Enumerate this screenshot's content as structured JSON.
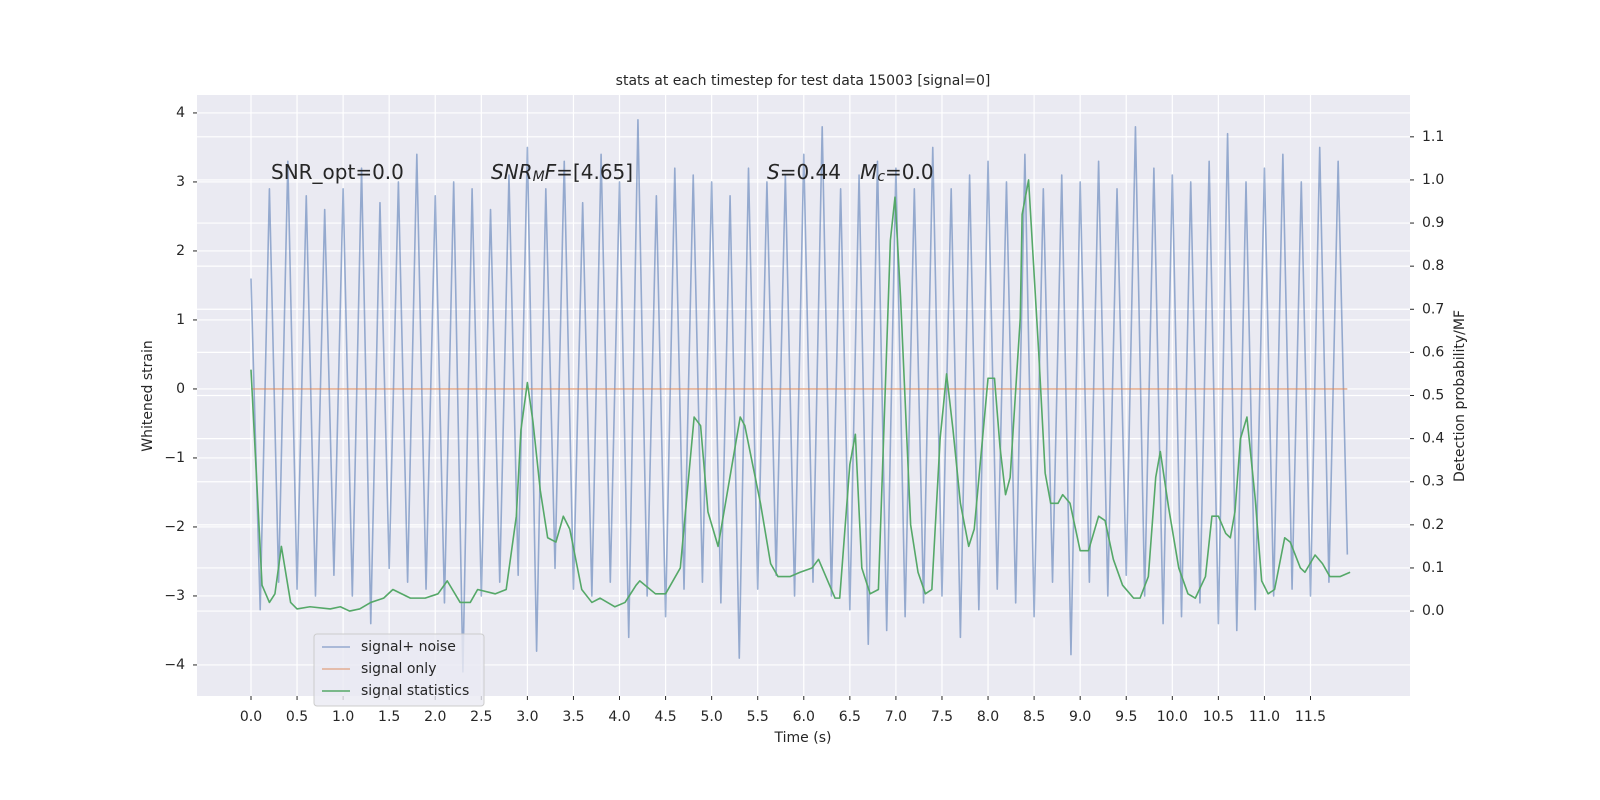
{
  "chart_data": {
    "type": "line",
    "title": "stats at each timestep for test data 15003 [signal=0]",
    "xlabel": "Time (s)",
    "ylabel": "Whitened strain",
    "y2label": "Detection probability/MF",
    "background": "#eaeaf2",
    "grid": true,
    "legend": "lower left",
    "xlim": [
      -0.586,
      12.58
    ],
    "ylim": [
      -4.45,
      4.26
    ],
    "y2lim": [
      -0.197,
      1.197
    ],
    "xticks": [
      {
        "value": 0,
        "label": "0.0"
      },
      0.5,
      {
        "value": 1,
        "label": "1.0"
      },
      1.5,
      {
        "value": 2,
        "label": "2.0"
      },
      2.5,
      {
        "value": 3,
        "label": "3.0"
      },
      3.5,
      {
        "value": 4,
        "label": "4.0"
      },
      4.5,
      {
        "value": 5,
        "label": "5.0"
      },
      5.5,
      {
        "value": 6,
        "label": "6.0"
      },
      6.5,
      {
        "value": 7,
        "label": "7.0"
      },
      7.5,
      {
        "value": 8,
        "label": "8.0"
      },
      8.5,
      {
        "value": 9,
        "label": "9.0"
      },
      9.5,
      {
        "value": 10,
        "label": "10.0"
      },
      10.5,
      {
        "value": 11,
        "label": "11.0"
      },
      11.5
    ],
    "yticks": [
      {
        "value": -4,
        "label": "−4"
      },
      {
        "value": -3,
        "label": "−3"
      },
      {
        "value": -2,
        "label": "−2"
      },
      {
        "value": -1,
        "label": "−1"
      },
      0,
      1,
      2,
      3,
      4
    ],
    "y2ticks": [
      {
        "value": 0,
        "label": "0.0"
      },
      0.1,
      0.2,
      0.3,
      0.4,
      0.5,
      0.6,
      0.7,
      0.8,
      0.9,
      {
        "value": 1,
        "label": "1.0"
      },
      1.1
    ],
    "annotations": [
      [
        {
          "text": "SNR_opt=0.0"
        }
      ],
      [
        {
          "text": "SNR",
          "italic": true
        },
        {
          "text": "M",
          "italic": true,
          "sub": true
        },
        {
          "text": "F",
          "italic": true
        },
        {
          "text": "=[4.65]"
        }
      ],
      [
        {
          "text": "S",
          "italic": true
        },
        {
          "text": "=0.44   "
        },
        {
          "text": "M",
          "italic": true
        },
        {
          "text": "c",
          "italic": true,
          "sub": true
        },
        {
          "text": "=0.0"
        }
      ]
    ],
    "series": [
      {
        "name": "signal+ noise",
        "color": "#4c72b0",
        "opacity": 0.55,
        "x": [
          0.0,
          0.1,
          0.2,
          0.3,
          0.4,
          0.5,
          0.6,
          0.7,
          0.8,
          0.9,
          1.0,
          1.1,
          1.2,
          1.3,
          1.4,
          1.5,
          1.6,
          1.7,
          1.8,
          1.9,
          2.0,
          2.1,
          2.2,
          2.3,
          2.4,
          2.5,
          2.6,
          2.7,
          2.8,
          2.9,
          3.0,
          3.1,
          3.2,
          3.3,
          3.4,
          3.5,
          3.6,
          3.7,
          3.8,
          3.9,
          4.0,
          4.1,
          4.2,
          4.3,
          4.4,
          4.5,
          4.6,
          4.7,
          4.8,
          4.9,
          5.0,
          5.1,
          5.2,
          5.3,
          5.4,
          5.5,
          5.6,
          5.7,
          5.8,
          5.9,
          6.0,
          6.1,
          6.2,
          6.3,
          6.4,
          6.5,
          6.6,
          6.7,
          6.8,
          6.9,
          7.0,
          7.1,
          7.2,
          7.3,
          7.4,
          7.5,
          7.6,
          7.7,
          7.8,
          7.9,
          8.0,
          8.1,
          8.2,
          8.3,
          8.4,
          8.5,
          8.6,
          8.7,
          8.8,
          8.9,
          9.0,
          9.1,
          9.2,
          9.3,
          9.4,
          9.5,
          9.6,
          9.7,
          9.8,
          9.9,
          10.0,
          10.1,
          10.2,
          10.3,
          10.4,
          10.5,
          10.6,
          10.7,
          10.8,
          10.9,
          11.0,
          11.1,
          11.2,
          11.3,
          11.4,
          11.5,
          11.6,
          11.7,
          11.8,
          11.9
        ],
        "values": [
          1.6,
          -3.2,
          2.9,
          -2.8,
          3.3,
          -2.9,
          2.8,
          -3.0,
          2.6,
          -2.7,
          2.9,
          -3.0,
          3.2,
          -3.4,
          2.7,
          -2.6,
          3.0,
          -2.8,
          3.4,
          -2.9,
          2.8,
          -3.1,
          3.0,
          -4.1,
          2.9,
          -3.0,
          2.6,
          -2.8,
          3.1,
          -2.7,
          3.5,
          -3.8,
          2.9,
          -2.6,
          3.3,
          -2.9,
          2.7,
          -3.0,
          3.4,
          -2.8,
          3.0,
          -3.6,
          3.9,
          -3.0,
          2.8,
          -3.3,
          3.2,
          -2.9,
          3.1,
          -2.8,
          3.0,
          -3.1,
          2.8,
          -3.9,
          3.2,
          -2.9,
          3.0,
          -2.7,
          3.1,
          -3.0,
          3.4,
          -2.8,
          3.8,
          -3.0,
          2.9,
          -3.2,
          3.1,
          -3.7,
          3.3,
          -3.5,
          3.2,
          -3.3,
          2.9,
          -3.1,
          3.5,
          -3.0,
          2.9,
          -3.6,
          3.1,
          -3.2,
          3.3,
          -2.9,
          3.0,
          -3.1,
          3.4,
          -3.3,
          2.9,
          -2.8,
          3.1,
          -3.85,
          3.0,
          -2.8,
          3.3,
          -3.0,
          2.9,
          -2.7,
          3.8,
          -3.0,
          3.2,
          -3.4,
          3.1,
          -3.3,
          3.0,
          -3.1,
          3.3,
          -3.4,
          3.7,
          -3.5,
          3.0,
          -3.2,
          3.2,
          -3.0,
          3.4,
          -2.9,
          3.0,
          -3.0,
          3.5,
          -2.8,
          3.3,
          -2.4
        ]
      },
      {
        "name": "signal only",
        "color": "#dd8452",
        "opacity": 0.6,
        "x": [
          0.0,
          11.9
        ],
        "values": [
          0,
          0
        ]
      },
      {
        "name": "signal statistics",
        "color": "#55a868",
        "opacity": 1,
        "axis": "y2",
        "x": [
          0,
          0.12,
          0.2,
          0.26,
          0.33,
          0.43,
          0.5,
          0.64,
          0.86,
          0.97,
          1.07,
          1.18,
          1.3,
          1.44,
          1.54,
          1.73,
          1.89,
          2.03,
          2.13,
          2.27,
          2.38,
          2.46,
          2.65,
          2.77,
          2.88,
          2.93,
          3.0,
          3.06,
          3.14,
          3.22,
          3.31,
          3.39,
          3.46,
          3.59,
          3.7,
          3.79,
          3.95,
          4.06,
          4.18,
          4.22,
          4.39,
          4.5,
          4.66,
          4.81,
          4.88,
          4.96,
          5.07,
          5.31,
          5.36,
          5.53,
          5.64,
          5.72,
          5.85,
          5.96,
          6.09,
          6.16,
          6.26,
          6.34,
          6.39,
          6.5,
          6.56,
          6.63,
          6.72,
          6.81,
          6.94,
          6.99,
          7.05,
          7.16,
          7.24,
          7.32,
          7.39,
          7.48,
          7.55,
          7.62,
          7.7,
          7.79,
          7.85,
          8.0,
          8.07,
          8.13,
          8.19,
          8.24,
          8.35,
          8.37,
          8.44,
          8.55,
          8.62,
          8.68,
          8.76,
          8.81,
          8.89,
          9.0,
          9.09,
          9.2,
          9.27,
          9.36,
          9.46,
          9.58,
          9.65,
          9.74,
          9.82,
          9.87,
          9.96,
          10.07,
          10.17,
          10.25,
          10.36,
          10.43,
          10.5,
          10.58,
          10.63,
          10.68,
          10.74,
          10.81,
          10.9,
          10.97,
          11.04,
          11.11,
          11.22,
          11.28,
          11.39,
          11.44,
          11.55,
          11.63,
          11.71,
          11.82,
          11.93
        ],
        "values": [
          0.56,
          0.06,
          0.02,
          0.04,
          0.15,
          0.02,
          0.005,
          0.01,
          0.005,
          0.01,
          0.0,
          0.005,
          0.02,
          0.03,
          0.05,
          0.03,
          0.03,
          0.04,
          0.07,
          0.02,
          0.02,
          0.05,
          0.04,
          0.05,
          0.22,
          0.42,
          0.53,
          0.44,
          0.28,
          0.17,
          0.16,
          0.22,
          0.19,
          0.05,
          0.02,
          0.03,
          0.01,
          0.02,
          0.06,
          0.07,
          0.04,
          0.04,
          0.1,
          0.45,
          0.43,
          0.23,
          0.15,
          0.45,
          0.43,
          0.25,
          0.11,
          0.08,
          0.08,
          0.09,
          0.1,
          0.12,
          0.07,
          0.03,
          0.03,
          0.34,
          0.41,
          0.1,
          0.04,
          0.05,
          0.86,
          0.96,
          0.73,
          0.2,
          0.09,
          0.04,
          0.05,
          0.4,
          0.55,
          0.42,
          0.25,
          0.15,
          0.19,
          0.54,
          0.54,
          0.38,
          0.27,
          0.31,
          0.68,
          0.92,
          1.0,
          0.6,
          0.32,
          0.25,
          0.25,
          0.27,
          0.25,
          0.14,
          0.14,
          0.22,
          0.21,
          0.12,
          0.06,
          0.03,
          0.03,
          0.08,
          0.31,
          0.37,
          0.24,
          0.1,
          0.04,
          0.03,
          0.08,
          0.22,
          0.22,
          0.18,
          0.17,
          0.23,
          0.4,
          0.45,
          0.26,
          0.07,
          0.04,
          0.05,
          0.17,
          0.16,
          0.1,
          0.09,
          0.13,
          0.11,
          0.08,
          0.08,
          0.09
        ]
      }
    ]
  }
}
